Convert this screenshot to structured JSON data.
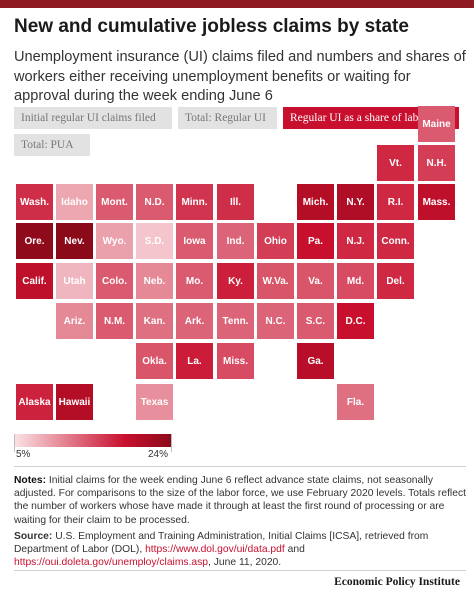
{
  "header": {
    "title": "New and cumulative jobless claims by state",
    "subtitle": "Unemployment insurance (UI) claims filed and numbers and shares of workers either receiving unemployment benefits or waiting for approval during the week ending June 6"
  },
  "toggles": [
    {
      "id": "initial",
      "label": "Initial regular UI claims filed",
      "active": false
    },
    {
      "id": "total-regular",
      "label": "Total: Regular UI",
      "active": false
    },
    {
      "id": "share",
      "label": "Regular UI as a share of labor force",
      "active": true
    },
    {
      "id": "pua",
      "label": "Total: PUA",
      "active": false
    }
  ],
  "colors": {
    "accent": "#c8102e",
    "scale_low": "#fbe3e6",
    "scale_high": "#8b0a1a",
    "brand_bar": "#8e1b22"
  },
  "chart_data": {
    "type": "heatmap",
    "metric": "Regular UI as a share of labor force",
    "scale": {
      "min_label": "5%",
      "max_label": "24%",
      "min": 5,
      "max": 24
    },
    "states": [
      {
        "abbr": "Maine",
        "value": 0.45
      },
      {
        "abbr": "Vt.",
        "value": 0.62
      },
      {
        "abbr": "N.H.",
        "value": 0.55
      },
      {
        "abbr": "Wash.",
        "value": 0.6
      },
      {
        "abbr": "Idaho",
        "value": 0.2
      },
      {
        "abbr": "Mont.",
        "value": 0.45
      },
      {
        "abbr": "N.D.",
        "value": 0.45
      },
      {
        "abbr": "Minn.",
        "value": 0.58
      },
      {
        "abbr": "Ill.",
        "value": 0.6
      },
      {
        "abbr": "Mich.",
        "value": 0.8
      },
      {
        "abbr": "N.Y.",
        "value": 0.82
      },
      {
        "abbr": "R.I.",
        "value": 0.62
      },
      {
        "abbr": "Mass.",
        "value": 0.75
      },
      {
        "abbr": "Ore.",
        "value": 0.98
      },
      {
        "abbr": "Nev.",
        "value": 1.0
      },
      {
        "abbr": "Wyo.",
        "value": 0.22
      },
      {
        "abbr": "S.D.",
        "value": 0.1
      },
      {
        "abbr": "Iowa",
        "value": 0.45
      },
      {
        "abbr": "Ind.",
        "value": 0.42
      },
      {
        "abbr": "Ohio",
        "value": 0.55
      },
      {
        "abbr": "Pa.",
        "value": 0.7
      },
      {
        "abbr": "N.J.",
        "value": 0.62
      },
      {
        "abbr": "Conn.",
        "value": 0.62
      },
      {
        "abbr": "Calif.",
        "value": 0.75
      },
      {
        "abbr": "Utah",
        "value": 0.15
      },
      {
        "abbr": "Colo.",
        "value": 0.45
      },
      {
        "abbr": "Neb.",
        "value": 0.3
      },
      {
        "abbr": "Mo.",
        "value": 0.45
      },
      {
        "abbr": "Ky.",
        "value": 0.65
      },
      {
        "abbr": "W.Va.",
        "value": 0.47
      },
      {
        "abbr": "Va.",
        "value": 0.47
      },
      {
        "abbr": "Md.",
        "value": 0.5
      },
      {
        "abbr": "Del.",
        "value": 0.62
      },
      {
        "abbr": "Ariz.",
        "value": 0.3
      },
      {
        "abbr": "N.M.",
        "value": 0.45
      },
      {
        "abbr": "Kan.",
        "value": 0.38
      },
      {
        "abbr": "Ark.",
        "value": 0.42
      },
      {
        "abbr": "Tenn.",
        "value": 0.42
      },
      {
        "abbr": "N.C.",
        "value": 0.42
      },
      {
        "abbr": "S.C.",
        "value": 0.45
      },
      {
        "abbr": "D.C.",
        "value": 0.7
      },
      {
        "abbr": "Okla.",
        "value": 0.47
      },
      {
        "abbr": "La.",
        "value": 0.66
      },
      {
        "abbr": "Miss.",
        "value": 0.5
      },
      {
        "abbr": "Ga.",
        "value": 0.78
      },
      {
        "abbr": "Alaska",
        "value": 0.64
      },
      {
        "abbr": "Hawaii",
        "value": 0.8
      },
      {
        "abbr": "Texas",
        "value": 0.28
      },
      {
        "abbr": "Fla.",
        "value": 0.38
      }
    ]
  },
  "notes": {
    "label": "Notes:",
    "text": "Initial claims for the week ending June 6 reflect advance state claims, not seasonally adjusted. For comparisons to the size of the labor force, we use February 2020 levels. Totals reflect the number of workers whose have made it through at least the first round of processing or are waiting for their claim to be processed."
  },
  "source": {
    "label": "Source:",
    "text": "U.S. Employment and Training Administration, Initial Claims [ICSA], retrieved from Department of Labor (DOL),",
    "link1": "https://www.dol.gov/ui/data.pdf",
    "connector": "and",
    "link2": "https://oui.doleta.gov/unemploy/claims.asp",
    "date": ", June 11, 2020."
  },
  "brand": "Economic Policy Institute"
}
